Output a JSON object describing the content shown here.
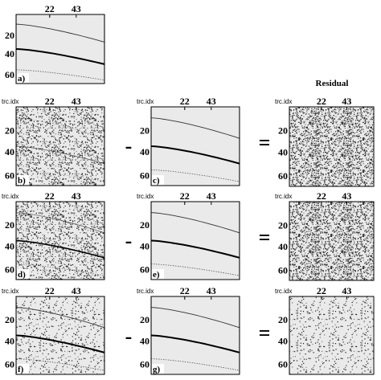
{
  "residual_title": "Residual",
  "panels": [
    {
      "label": "a)",
      "x_ticks": [
        "22",
        "43"
      ],
      "y_ticks": [
        "20",
        "40",
        "60"
      ]
    },
    {
      "label": "b)",
      "axis_label": "trc.idx",
      "x_ticks": [
        "22",
        "43"
      ],
      "y_ticks": [
        "20",
        "40",
        "60"
      ]
    },
    {
      "label": "c)",
      "axis_label": "trc.idx",
      "x_ticks": [
        "22",
        "43"
      ],
      "y_ticks": [
        "20",
        "40",
        "60"
      ]
    },
    {
      "axis_label": "trc.idx",
      "x_ticks": [
        "22",
        "43"
      ],
      "y_ticks": [
        "20",
        "40",
        "60"
      ]
    },
    {
      "label": "d)",
      "axis_label": "trc.idx",
      "x_ticks": [
        "22",
        "43"
      ],
      "y_ticks": [
        "20",
        "40",
        "60"
      ]
    },
    {
      "label": "e)",
      "axis_label": "trc.idx",
      "x_ticks": [
        "22",
        "43"
      ],
      "y_ticks": [
        "20",
        "40",
        "60"
      ]
    },
    {
      "axis_label": "trc.idx",
      "x_ticks": [
        "22",
        "43"
      ],
      "y_ticks": [
        "20",
        "40",
        "60"
      ]
    },
    {
      "label": "f)",
      "axis_label": "trc.idx",
      "x_ticks": [
        "22",
        "43"
      ],
      "y_ticks": [
        "20",
        "40",
        "60"
      ]
    },
    {
      "label": "g)",
      "axis_label": "trc.idx",
      "x_ticks": [
        "22",
        "43"
      ],
      "y_ticks": [
        "20",
        "40",
        "60"
      ]
    },
    {
      "axis_label": "trc.idx",
      "x_ticks": [
        "22",
        "43"
      ],
      "y_ticks": [
        "20",
        "40",
        "60"
      ]
    }
  ],
  "operators": [
    {
      "minus": "-",
      "equals": "="
    },
    {
      "minus": "-",
      "equals": "="
    },
    {
      "minus": "-",
      "equals": "="
    }
  ]
}
